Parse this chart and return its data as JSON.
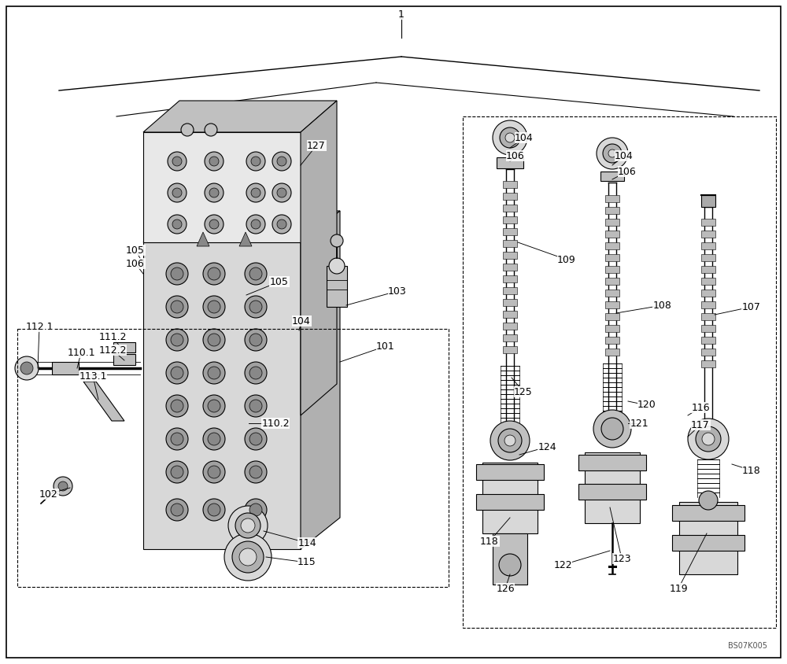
{
  "bg_color": "#ffffff",
  "figsize": [
    10.0,
    8.44
  ],
  "dpi": 100,
  "watermark": "BS07K005",
  "line_color": "#000000",
  "text_color": "#000000",
  "font_size": 9,
  "g1": "#d8d8d8",
  "g2": "#c0c0c0",
  "g3": "#b0b0b0",
  "g4": "#a0a0a0",
  "g5": "#888888",
  "g6": "#e8e8e8",
  "labels": [
    [
      "1",
      510,
      18
    ],
    [
      "101",
      490,
      440
    ],
    [
      "102",
      62,
      628
    ],
    [
      "103",
      505,
      370
    ],
    [
      "104",
      383,
      408
    ],
    [
      "104",
      666,
      175
    ],
    [
      "104",
      793,
      198
    ],
    [
      "105",
      172,
      318
    ],
    [
      "105",
      355,
      358
    ],
    [
      "106",
      172,
      335
    ],
    [
      "106",
      655,
      198
    ],
    [
      "106",
      797,
      218
    ],
    [
      "107",
      955,
      390
    ],
    [
      "108",
      842,
      388
    ],
    [
      "109",
      720,
      330
    ],
    [
      "110.1",
      103,
      448
    ],
    [
      "110.2",
      350,
      538
    ],
    [
      "111.2",
      143,
      428
    ],
    [
      "112.1",
      50,
      415
    ],
    [
      "112.2",
      143,
      445
    ],
    [
      "113.1",
      118,
      478
    ],
    [
      "114",
      390,
      690
    ],
    [
      "115",
      390,
      715
    ],
    [
      "116",
      890,
      518
    ],
    [
      "117",
      890,
      540
    ],
    [
      "118",
      622,
      688
    ],
    [
      "118",
      955,
      598
    ],
    [
      "119",
      862,
      748
    ],
    [
      "120",
      822,
      515
    ],
    [
      "121",
      812,
      538
    ],
    [
      "122",
      715,
      718
    ],
    [
      "123",
      790,
      710
    ],
    [
      "124",
      695,
      568
    ],
    [
      "125",
      665,
      498
    ],
    [
      "126",
      642,
      748
    ],
    [
      "127",
      402,
      185
    ]
  ],
  "leader_lines": [
    [
      490,
      440,
      432,
      460
    ],
    [
      62,
      628,
      89,
      620
    ],
    [
      505,
      370,
      440,
      388
    ],
    [
      383,
      408,
      380,
      420
    ],
    [
      666,
      175,
      648,
      188
    ],
    [
      793,
      198,
      778,
      210
    ],
    [
      172,
      318,
      182,
      335
    ],
    [
      355,
      358,
      313,
      375
    ],
    [
      172,
      335,
      182,
      348
    ],
    [
      655,
      198,
      648,
      205
    ],
    [
      797,
      218,
      778,
      228
    ],
    [
      955,
      390,
      908,
      400
    ],
    [
      842,
      388,
      783,
      398
    ],
    [
      720,
      330,
      658,
      308
    ],
    [
      103,
      448,
      98,
      468
    ],
    [
      350,
      538,
      316,
      538
    ],
    [
      143,
      428,
      158,
      448
    ],
    [
      50,
      415,
      48,
      468
    ],
    [
      143,
      445,
      158,
      458
    ],
    [
      118,
      478,
      125,
      508
    ],
    [
      390,
      690,
      335,
      675
    ],
    [
      390,
      715,
      338,
      708
    ],
    [
      890,
      518,
      874,
      528
    ],
    [
      890,
      540,
      874,
      555
    ],
    [
      622,
      688,
      648,
      658
    ],
    [
      955,
      598,
      930,
      590
    ],
    [
      862,
      748,
      898,
      678
    ],
    [
      822,
      515,
      798,
      510
    ],
    [
      812,
      538,
      798,
      538
    ],
    [
      715,
      718,
      775,
      700
    ],
    [
      790,
      710,
      775,
      645
    ],
    [
      695,
      568,
      660,
      578
    ],
    [
      665,
      498,
      650,
      480
    ],
    [
      642,
      748,
      648,
      730
    ],
    [
      402,
      185,
      382,
      210
    ]
  ]
}
